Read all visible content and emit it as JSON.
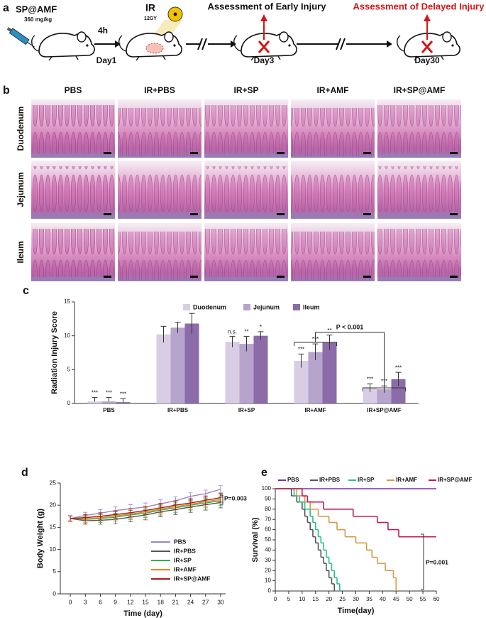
{
  "panel_labels": [
    "a",
    "b",
    "c",
    "d",
    "e"
  ],
  "schematic": {
    "drug": "SP@AMF",
    "dose": "360 mg/kg",
    "interval": "4h",
    "treatment": "IR",
    "ir_dose": "12GY",
    "day1": "Day1",
    "early": "Assessment of Early Injury",
    "day3": "Day3",
    "delayed": "Assessment of Delayed Injury",
    "day30": "Day30"
  },
  "histology": {
    "columns": [
      "PBS",
      "IR+PBS",
      "IR+SP",
      "IR+AMF",
      "IR+SP@AMF"
    ],
    "rows": [
      "Duodenum",
      "Jejunum",
      "Ileum"
    ]
  },
  "chart_data": [
    {
      "type": "bar",
      "y_label": "Radiation Injury Score",
      "categories": [
        "PBS",
        "IR+PBS",
        "IR+SP",
        "IR+AMF",
        "IR+SP@AMF"
      ],
      "series": [
        {
          "name": "Duodenum",
          "color": "#d8cde4",
          "values": [
            0.3,
            10.2,
            9.1,
            6.3,
            2.3
          ],
          "errors": [
            0.6,
            1.2,
            0.8,
            1.0,
            0.6
          ],
          "sig_labels": [
            "***",
            null,
            "n.s.",
            "***",
            "***"
          ]
        },
        {
          "name": "Jejunum",
          "color": "#b6a4cc",
          "values": [
            0.3,
            11.2,
            8.8,
            7.6,
            2.1
          ],
          "errors": [
            0.6,
            0.8,
            1.1,
            1.2,
            0.5
          ],
          "sig_labels": [
            "***",
            null,
            "**",
            "***",
            "***"
          ]
        },
        {
          "name": "Ileum",
          "color": "#8b6ca9",
          "values": [
            0.2,
            11.8,
            10.0,
            9.0,
            3.6
          ],
          "errors": [
            0.5,
            1.5,
            0.6,
            1.1,
            1.0
          ],
          "sig_labels": [
            "***",
            null,
            "*",
            "**",
            "***"
          ]
        }
      ],
      "ylim": [
        0,
        15
      ],
      "yticks": [
        0,
        5,
        10,
        15
      ],
      "legend": "top",
      "annotation": "P < 0.001"
    },
    {
      "type": "line",
      "x_label": "Time (day)",
      "y_label": "Body Weight (g)",
      "x": [
        0,
        3,
        6,
        9,
        12,
        15,
        18,
        21,
        24,
        27,
        30
      ],
      "series": [
        {
          "name": "PBS",
          "color": "#9c84c8",
          "values": [
            17.0,
            17.7,
            18.2,
            18.8,
            19.2,
            19.6,
            20.3,
            21.0,
            22.0,
            22.6,
            23.6
          ],
          "errors": [
            0.6,
            0.7,
            0.8,
            0.8,
            0.9,
            0.9,
            0.9,
            0.9,
            0.8,
            0.8,
            0.8
          ]
        },
        {
          "name": "IR+PBS",
          "color": "#555555",
          "values": [
            17.0,
            16.5,
            16.6,
            16.8,
            17.3,
            17.8,
            18.5,
            19.0,
            19.6,
            20.1,
            20.6
          ],
          "errors": [
            0.6,
            0.8,
            0.9,
            1.0,
            1.0,
            1.1,
            1.1,
            1.1,
            1.2,
            1.2,
            1.2
          ]
        },
        {
          "name": "IR+SP",
          "color": "#2fae50",
          "values": [
            17.0,
            16.8,
            17.0,
            17.3,
            17.8,
            18.2,
            18.9,
            19.4,
            20.0,
            20.5,
            21.0
          ],
          "errors": [
            0.6,
            0.8,
            0.9,
            0.9,
            1.0,
            1.0,
            1.1,
            1.1,
            1.1,
            1.1,
            1.1
          ]
        },
        {
          "name": "IR+AMF",
          "color": "#e8841e",
          "values": [
            17.0,
            16.9,
            17.2,
            17.6,
            18.0,
            18.5,
            19.1,
            19.7,
            20.2,
            20.8,
            21.3
          ],
          "errors": [
            0.6,
            0.8,
            0.8,
            0.9,
            0.9,
            1.0,
            1.0,
            1.0,
            1.1,
            1.1,
            1.1
          ]
        },
        {
          "name": "IR+SP@AMF",
          "color": "#a01c1c",
          "values": [
            17.0,
            17.2,
            17.5,
            17.9,
            18.3,
            18.8,
            19.4,
            20.0,
            20.5,
            21.1,
            21.7
          ],
          "errors": [
            0.6,
            0.7,
            0.8,
            0.8,
            0.9,
            0.9,
            1.0,
            1.0,
            1.0,
            1.0,
            1.0
          ]
        }
      ],
      "xlim": [
        -2,
        31
      ],
      "xticks": [
        0,
        3,
        6,
        9,
        12,
        15,
        18,
        21,
        24,
        27,
        30
      ],
      "ylim": [
        0,
        25
      ],
      "yticks": [
        0,
        5,
        10,
        15,
        20,
        25
      ],
      "legend": "lower right",
      "annotation": "P=0.003"
    },
    {
      "type": "step",
      "x_label": "Time(day)",
      "y_label": "Survival (%)",
      "series": [
        {
          "name": "PBS",
          "color": "#7a2ea6",
          "x": [
            0,
            60
          ],
          "values": [
            100,
            100
          ]
        },
        {
          "name": "IR+PBS",
          "color": "#555555",
          "x": [
            0,
            6,
            8,
            10,
            11,
            12,
            13,
            14,
            15,
            16,
            17,
            18,
            19,
            20,
            21,
            22
          ],
          "values": [
            100,
            93,
            87,
            80,
            73,
            67,
            60,
            53,
            47,
            40,
            33,
            27,
            20,
            13,
            7,
            0
          ]
        },
        {
          "name": "IR+SP",
          "color": "#25c08a",
          "x": [
            0,
            7,
            9,
            11,
            13,
            14,
            15,
            16,
            17,
            18,
            19,
            20,
            21,
            22,
            23,
            24
          ],
          "values": [
            100,
            93,
            87,
            80,
            73,
            67,
            60,
            53,
            47,
            40,
            33,
            27,
            20,
            13,
            7,
            0
          ]
        },
        {
          "name": "IR+AMF",
          "color": "#d49a4a",
          "x": [
            0,
            8,
            11,
            13,
            16,
            20,
            23,
            26,
            30,
            34,
            36,
            38,
            41,
            44,
            45
          ],
          "values": [
            100,
            93,
            87,
            80,
            73,
            67,
            60,
            53,
            47,
            40,
            33,
            27,
            20,
            13,
            0
          ]
        },
        {
          "name": "IR+SP@AMF",
          "color": "#c2185b",
          "x": [
            0,
            10,
            12,
            18,
            29,
            38,
            42,
            46,
            60
          ],
          "values": [
            100,
            93,
            87,
            80,
            73,
            67,
            60,
            53,
            53
          ]
        }
      ],
      "xlim": [
        0,
        60
      ],
      "xticks": [
        0,
        5,
        10,
        15,
        20,
        25,
        30,
        35,
        40,
        45,
        50,
        55,
        60
      ],
      "ylim": [
        0,
        100
      ],
      "yticks": [
        0,
        10,
        20,
        30,
        40,
        50,
        60,
        70,
        80,
        90,
        100
      ],
      "legend": "top",
      "annotation": "P=0.001"
    }
  ]
}
